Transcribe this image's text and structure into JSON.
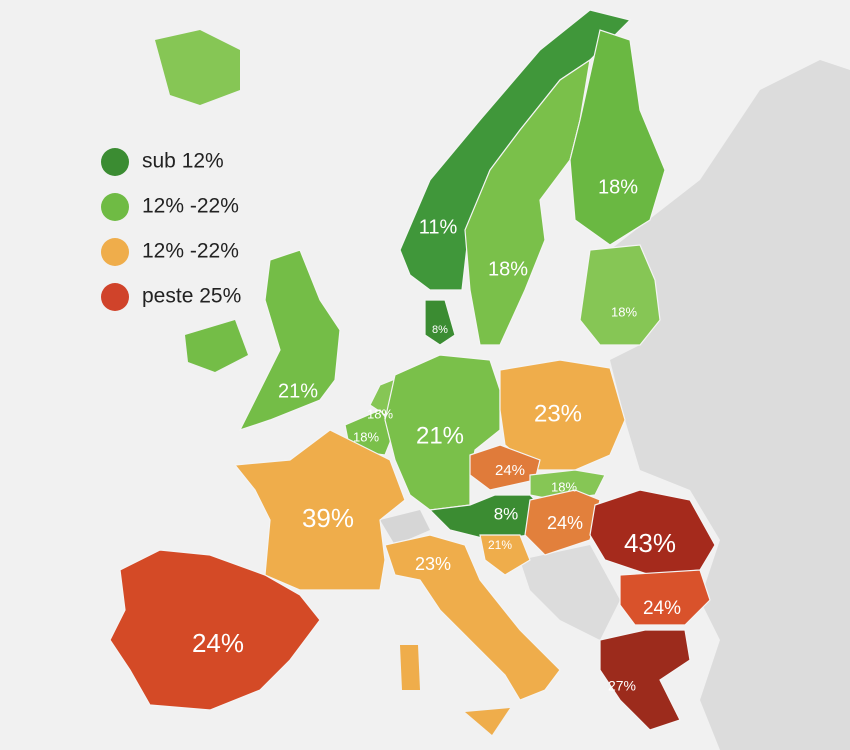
{
  "legend": [
    {
      "label": "sub 12%",
      "color": "#3b8c32"
    },
    {
      "label": "12% -22%",
      "color": "#6fbb44"
    },
    {
      "label": "12% -22%",
      "color": "#efad4b"
    },
    {
      "label": "peste 25%",
      "color": "#d0432a"
    }
  ],
  "regions": [
    {
      "label": "11%",
      "color": "#40973a"
    },
    {
      "label": "18%",
      "color": "#7ac04a"
    },
    {
      "label": "18%",
      "color": "#6ab842"
    },
    {
      "label": "18%",
      "color": "#86c655"
    },
    {
      "label": "8%",
      "color": "#3b8c32"
    },
    {
      "label": "21%",
      "color": "#74bd47"
    },
    {
      "label": "18%",
      "color": "#86c655"
    },
    {
      "label": "18%",
      "color": "#7ac04a"
    },
    {
      "label": "21%",
      "color": "#7ac04a"
    },
    {
      "label": "23%",
      "color": "#efad4b"
    },
    {
      "label": "24%",
      "color": "#e07b3a"
    },
    {
      "label": "18%",
      "color": "#86c655"
    },
    {
      "label": "8%",
      "color": "#3b8c32"
    },
    {
      "label": "21%",
      "color": "#efad4b"
    },
    {
      "label": "24%",
      "color": "#e2803c"
    },
    {
      "label": "43%",
      "color": "#a52a1c"
    },
    {
      "label": "24%",
      "color": "#d9522b"
    },
    {
      "label": "27%",
      "color": "#9c2b1c"
    },
    {
      "label": "39%",
      "color": "#efad4b"
    },
    {
      "label": "24%",
      "color": "#d44a26"
    },
    {
      "label": "23%",
      "color": "#efad4b"
    }
  ]
}
